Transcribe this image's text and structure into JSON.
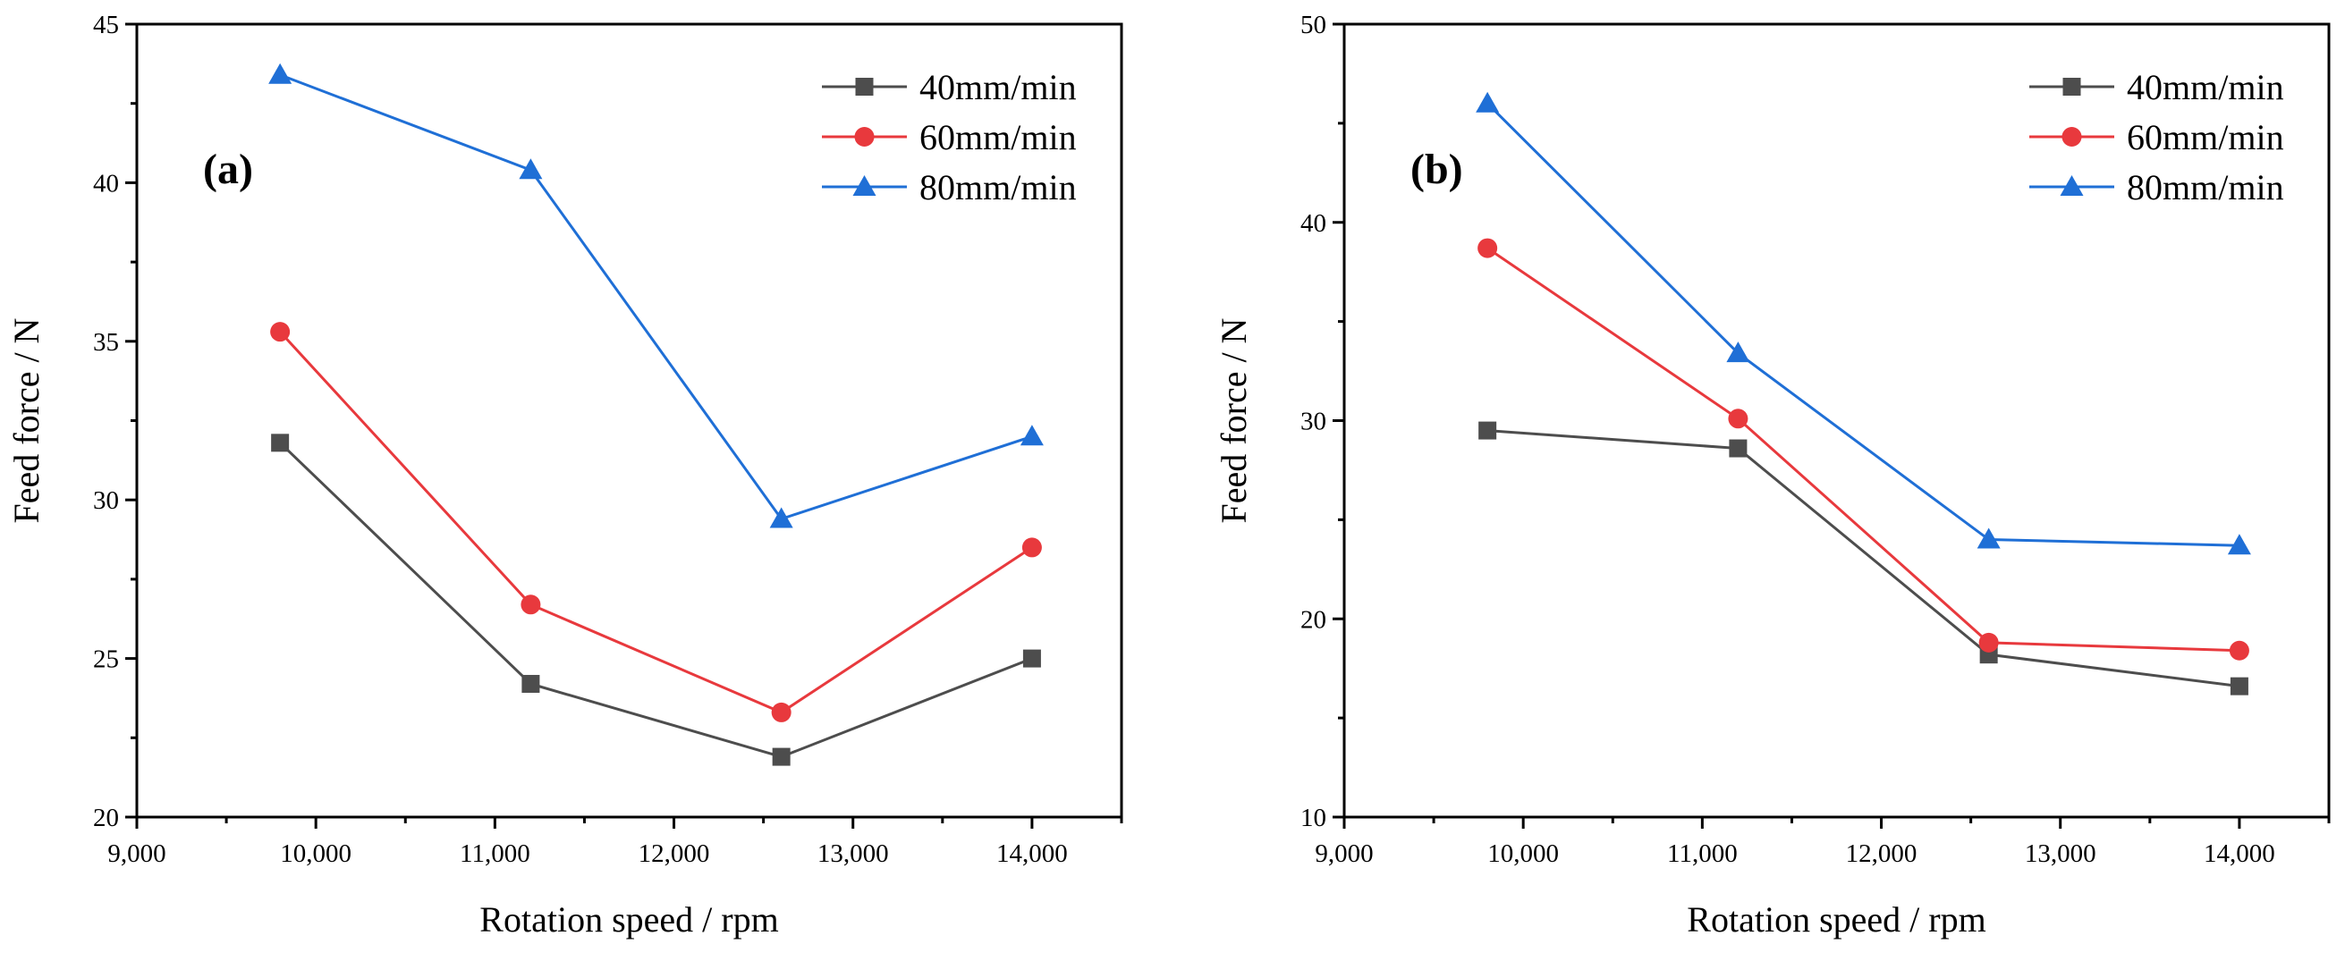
{
  "chart_data": [
    {
      "type": "line",
      "panel_label": "(a)",
      "xlabel": "Rotation speed / rpm",
      "ylabel": "Feed force / N",
      "xlim": [
        9000,
        14500
      ],
      "ylim": [
        20,
        45
      ],
      "xticks": [
        9000,
        10000,
        11000,
        12000,
        13000,
        14000
      ],
      "xtick_labels": [
        "9,000",
        "10,000",
        "11,000",
        "12,000",
        "13,000",
        "14,000"
      ],
      "yticks": [
        20,
        25,
        30,
        35,
        40,
        45
      ],
      "ytick_labels": [
        "20",
        "25",
        "30",
        "35",
        "40",
        "45"
      ],
      "legend_position": "top-right",
      "series": [
        {
          "name": "40mm/min",
          "marker": "square",
          "color": "#4d4d4d",
          "x": [
            9800,
            11200,
            12600,
            14000
          ],
          "y": [
            31.8,
            24.2,
            21.9,
            25.0
          ]
        },
        {
          "name": "60mm/min",
          "marker": "circle",
          "color": "#e8393d",
          "x": [
            9800,
            11200,
            12600,
            14000
          ],
          "y": [
            35.3,
            26.7,
            23.3,
            28.5
          ]
        },
        {
          "name": "80mm/min",
          "marker": "triangle",
          "color": "#1f6fd6",
          "x": [
            9800,
            11200,
            12600,
            14000
          ],
          "y": [
            43.4,
            40.4,
            29.4,
            32.0
          ]
        }
      ]
    },
    {
      "type": "line",
      "panel_label": "(b)",
      "xlabel": "Rotation speed / rpm",
      "ylabel": "Feed force / N",
      "xlim": [
        9000,
        14500
      ],
      "ylim": [
        10,
        50
      ],
      "xticks": [
        9000,
        10000,
        11000,
        12000,
        13000,
        14000
      ],
      "xtick_labels": [
        "9,000",
        "10,000",
        "11,000",
        "12,000",
        "13,000",
        "14,000"
      ],
      "yticks": [
        10,
        20,
        30,
        40,
        50
      ],
      "ytick_labels": [
        "10",
        "20",
        "30",
        "40",
        "50"
      ],
      "legend_position": "top-right",
      "series": [
        {
          "name": "40mm/min",
          "marker": "square",
          "color": "#4d4d4d",
          "x": [
            9800,
            11200,
            12600,
            14000
          ],
          "y": [
            29.5,
            28.6,
            18.2,
            16.6
          ]
        },
        {
          "name": "60mm/min",
          "marker": "circle",
          "color": "#e8393d",
          "x": [
            9800,
            11200,
            12600,
            14000
          ],
          "y": [
            38.7,
            30.1,
            18.8,
            18.4
          ]
        },
        {
          "name": "80mm/min",
          "marker": "triangle",
          "color": "#1f6fd6",
          "x": [
            9800,
            11200,
            12600,
            14000
          ],
          "y": [
            46.0,
            33.4,
            24.0,
            23.7
          ]
        }
      ]
    }
  ]
}
